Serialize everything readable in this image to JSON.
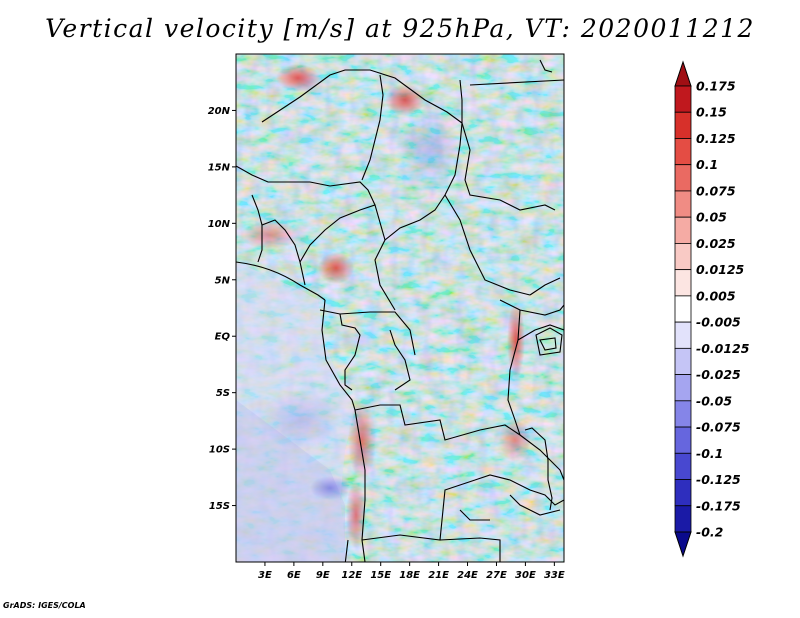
{
  "title": "Vertical velocity [m/s] at 925hPa, VT: 2020011212",
  "credit": "GrADS: IGES/COLA",
  "map": {
    "lon_range": [
      0,
      34
    ],
    "lat_range": [
      -20,
      25
    ],
    "lon_ticks": [
      {
        "lon": 3,
        "label": "3E"
      },
      {
        "lon": 6,
        "label": "6E"
      },
      {
        "lon": 9,
        "label": "9E"
      },
      {
        "lon": 12,
        "label": "12E"
      },
      {
        "lon": 15,
        "label": "15E"
      },
      {
        "lon": 18,
        "label": "18E"
      },
      {
        "lon": 21,
        "label": "21E"
      },
      {
        "lon": 24,
        "label": "24E"
      },
      {
        "lon": 27,
        "label": "27E"
      },
      {
        "lon": 30,
        "label": "30E"
      },
      {
        "lon": 33,
        "label": "33E"
      }
    ],
    "lat_ticks": [
      {
        "lat": 20,
        "label": "20N"
      },
      {
        "lat": 15,
        "label": "15N"
      },
      {
        "lat": 10,
        "label": "10N"
      },
      {
        "lat": 5,
        "label": "5N"
      },
      {
        "lat": 0,
        "label": "EQ"
      },
      {
        "lat": -5,
        "label": "5S"
      },
      {
        "lat": -10,
        "label": "10S"
      },
      {
        "lat": -15,
        "label": "15S"
      }
    ]
  },
  "colorbar": {
    "labels": [
      "0.175",
      "0.15",
      "0.125",
      "0.1",
      "0.075",
      "0.05",
      "0.025",
      "0.0125",
      "0.005",
      "-0.005",
      "-0.0125",
      "-0.025",
      "-0.05",
      "-0.075",
      "-0.1",
      "-0.125",
      "-0.175",
      "-0.2"
    ],
    "colors": [
      "#a00f14",
      "#c0181e",
      "#d7302a",
      "#e44d44",
      "#ea6a62",
      "#f08c84",
      "#f5aba4",
      "#f9cac5",
      "#fce5e2",
      "#ffffff",
      "#e2e2fb",
      "#c5c5f6",
      "#a5a5f0",
      "#8585e8",
      "#6666de",
      "#4848d0",
      "#2e2ebe",
      "#1a1aa6",
      "#0a0a8c"
    ]
  },
  "chart_data": {
    "type": "heatmap",
    "title": "Vertical velocity [m/s] at 925hPa, VT: 2020011212",
    "variable": "Vertical velocity",
    "units": "m/s",
    "level": "925hPa",
    "valid_time": "2020011212",
    "x_range": [
      0,
      34
    ],
    "y_range": [
      -20,
      25
    ],
    "contour_levels": [
      -0.2,
      -0.175,
      -0.125,
      -0.1,
      -0.075,
      -0.05,
      -0.025,
      -0.0125,
      -0.005,
      0.005,
      0.0125,
      0.025,
      0.05,
      0.075,
      0.1,
      0.125,
      0.15,
      0.175
    ]
  }
}
